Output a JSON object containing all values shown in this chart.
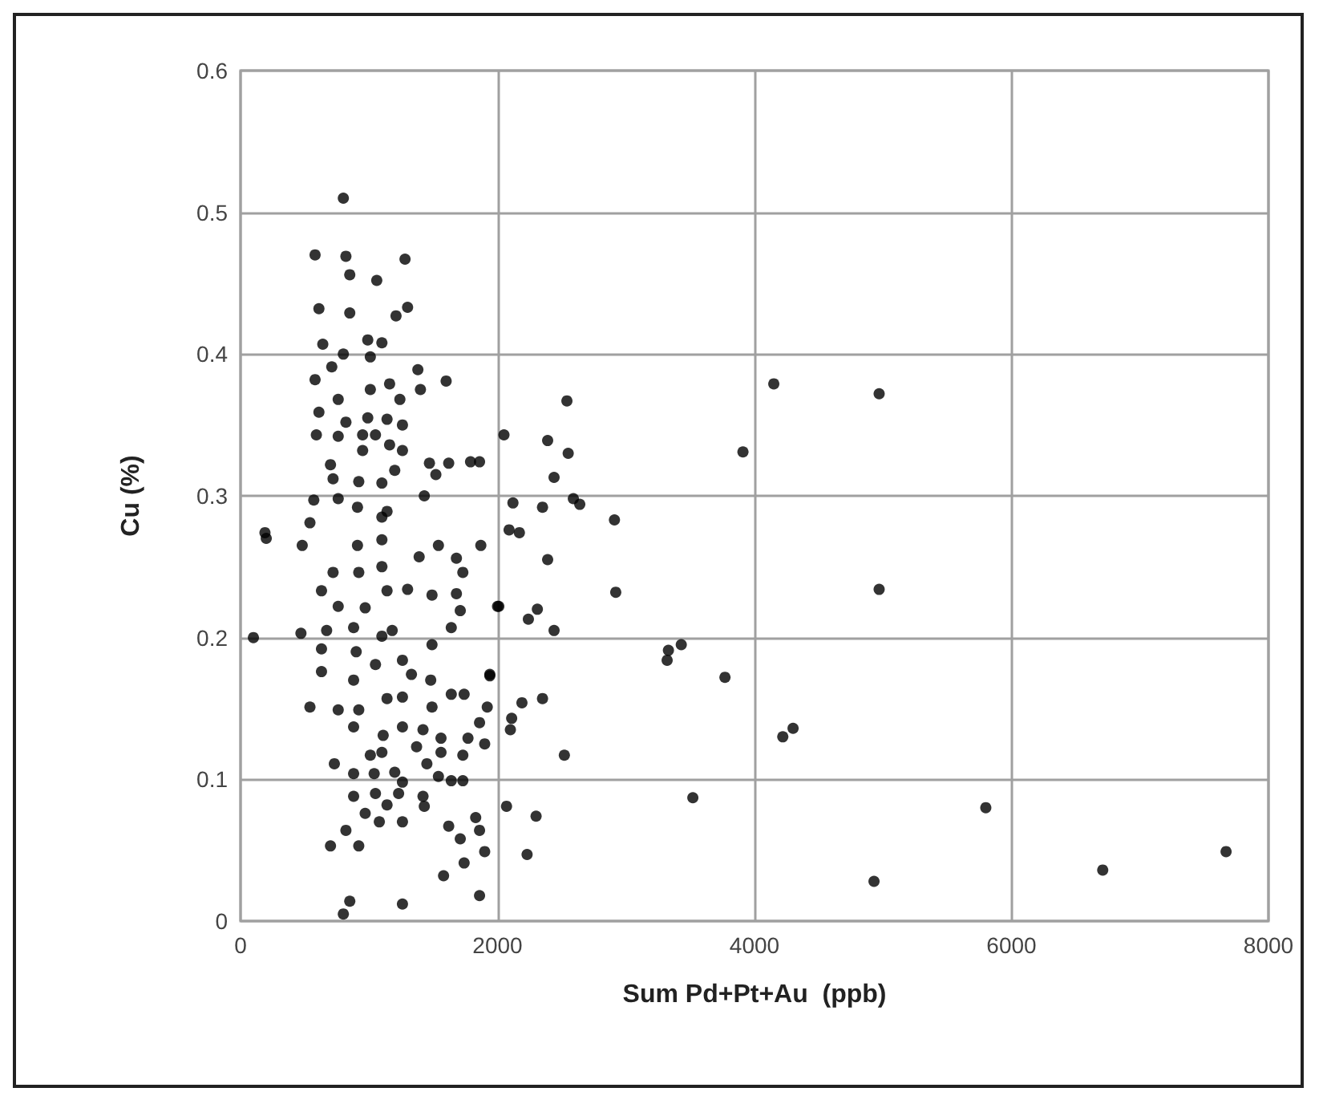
{
  "chart_data": {
    "type": "scatter",
    "xlabel": "Sum Pd+Pt+Au  (ppb)",
    "ylabel": "Cu (%)",
    "xlim": [
      0,
      8000
    ],
    "xticks": [
      0,
      2000,
      4000,
      6000,
      8000
    ],
    "ylim": [
      0,
      0.6
    ],
    "yticks": [
      0,
      0.1,
      0.2,
      0.3,
      0.4,
      0.5,
      0.6
    ],
    "grid": true,
    "marker": "circle",
    "series": [
      {
        "color": "#000000",
        "x": [
          200,
          100,
          4150,
          4970,
          3910,
          4970,
          2540,
          2050,
          2390,
          2550,
          2440,
          2120,
          2350,
          2590,
          2640,
          2910,
          2090,
          2170,
          2390,
          2920,
          2010,
          2310,
          2240,
          2440,
          3430,
          3330,
          3320,
          3770,
          1940,
          2190,
          2350,
          2110,
          2100,
          4300,
          4220,
          2520,
          3520,
          2070,
          2300,
          2230,
          4930,
          5800,
          6710,
          7670,
          800,
          580,
          820,
          1280,
          850,
          1060,
          610,
          850,
          1210,
          1300,
          640,
          990,
          1100,
          1010,
          800,
          710,
          580,
          1380,
          1600,
          1400,
          1010,
          1160,
          1240,
          760,
          610,
          990,
          1140,
          1260,
          820,
          590,
          760,
          950,
          1050,
          1160,
          1260,
          950,
          1470,
          1620,
          1790,
          1860,
          1520,
          700,
          720,
          1100,
          1200,
          920,
          1430,
          570,
          760,
          190,
          480,
          540,
          910,
          1100,
          1100,
          1390,
          1540,
          1680,
          1870,
          1730,
          720,
          920,
          1100,
          630,
          1140,
          1300,
          1490,
          1680,
          970,
          760,
          1710,
          2000,
          470,
          670,
          880,
          1100,
          1180,
          1640,
          1490,
          630,
          900,
          1260,
          630,
          1050,
          1330,
          1940,
          1480,
          880,
          540,
          760,
          920,
          1140,
          1260,
          1490,
          1640,
          1740,
          1920,
          1860,
          880,
          1110,
          1260,
          1420,
          1560,
          1770,
          1900,
          1370,
          1100,
          1010,
          1560,
          1730,
          730,
          1450,
          880,
          1040,
          1200,
          1260,
          1540,
          1640,
          1730,
          880,
          1050,
          1230,
          1420,
          1430,
          1140,
          970,
          1080,
          820,
          1260,
          1830,
          1860,
          1620,
          1710,
          700,
          920,
          1900,
          1740,
          1580,
          1860,
          850,
          1260,
          800,
          910,
          1140
        ],
        "values": [
          0.27,
          0.2,
          0.379,
          0.372,
          0.331,
          0.234,
          0.367,
          0.343,
          0.339,
          0.33,
          0.313,
          0.295,
          0.292,
          0.298,
          0.294,
          0.283,
          0.276,
          0.274,
          0.255,
          0.232,
          0.222,
          0.22,
          0.213,
          0.205,
          0.195,
          0.191,
          0.184,
          0.172,
          0.173,
          0.154,
          0.157,
          0.143,
          0.135,
          0.136,
          0.13,
          0.117,
          0.087,
          0.081,
          0.074,
          0.047,
          0.028,
          0.08,
          0.036,
          0.049,
          0.51,
          0.47,
          0.469,
          0.467,
          0.456,
          0.452,
          0.432,
          0.429,
          0.427,
          0.433,
          0.407,
          0.41,
          0.408,
          0.398,
          0.4,
          0.391,
          0.382,
          0.389,
          0.381,
          0.375,
          0.375,
          0.379,
          0.368,
          0.368,
          0.359,
          0.355,
          0.354,
          0.35,
          0.352,
          0.343,
          0.342,
          0.343,
          0.343,
          0.336,
          0.332,
          0.332,
          0.323,
          0.323,
          0.324,
          0.324,
          0.315,
          0.322,
          0.312,
          0.309,
          0.318,
          0.31,
          0.3,
          0.297,
          0.298,
          0.274,
          0.265,
          0.281,
          0.265,
          0.285,
          0.269,
          0.257,
          0.265,
          0.256,
          0.265,
          0.246,
          0.246,
          0.246,
          0.25,
          0.233,
          0.233,
          0.234,
          0.23,
          0.231,
          0.221,
          0.222,
          0.219,
          0.222,
          0.203,
          0.205,
          0.207,
          0.201,
          0.205,
          0.207,
          0.195,
          0.192,
          0.19,
          0.184,
          0.176,
          0.181,
          0.174,
          0.174,
          0.17,
          0.17,
          0.151,
          0.149,
          0.149,
          0.157,
          0.158,
          0.151,
          0.16,
          0.16,
          0.151,
          0.14,
          0.137,
          0.131,
          0.137,
          0.135,
          0.129,
          0.129,
          0.125,
          0.123,
          0.119,
          0.117,
          0.119,
          0.117,
          0.111,
          0.111,
          0.104,
          0.104,
          0.105,
          0.098,
          0.102,
          0.099,
          0.099,
          0.088,
          0.09,
          0.09,
          0.088,
          0.081,
          0.082,
          0.076,
          0.07,
          0.064,
          0.07,
          0.073,
          0.064,
          0.067,
          0.058,
          0.053,
          0.053,
          0.049,
          0.041,
          0.032,
          0.018,
          0.014,
          0.012,
          0.005,
          0.292,
          0.289
        ]
      }
    ]
  }
}
